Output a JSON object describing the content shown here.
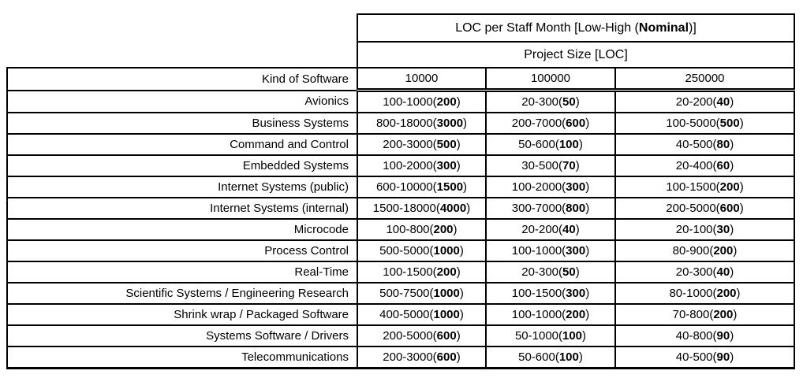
{
  "table": {
    "title_parts": [
      "LOC per Staff Month [Low-High (",
      "Nominal",
      ")]"
    ],
    "subtitle": "Project Size [LOC]",
    "row_header": "Kind of Software",
    "size_columns": [
      "10000",
      "100000",
      "250000"
    ],
    "rows": [
      {
        "label": "Avionics",
        "cells": [
          [
            "100-1000(",
            "200",
            ")"
          ],
          [
            "20-300(",
            "50",
            ")"
          ],
          [
            "20-200(",
            "40",
            ")"
          ]
        ]
      },
      {
        "label": "Business Systems",
        "cells": [
          [
            "800-18000(",
            "3000",
            ")"
          ],
          [
            "200-7000(",
            "600",
            ")"
          ],
          [
            "100-5000(",
            "500",
            ")"
          ]
        ]
      },
      {
        "label": "Command and Control",
        "cells": [
          [
            "200-3000(",
            "500",
            ")"
          ],
          [
            "50-600(",
            "100",
            ")"
          ],
          [
            "40-500(",
            "80",
            ")"
          ]
        ]
      },
      {
        "label": "Embedded Systems",
        "cells": [
          [
            "100-2000(",
            "300",
            ")"
          ],
          [
            "30-500(",
            "70",
            ")"
          ],
          [
            "20-400(",
            "60",
            ")"
          ]
        ]
      },
      {
        "label": "Internet Systems (public)",
        "cells": [
          [
            "600-10000(",
            "1500",
            ")"
          ],
          [
            "100-2000(",
            "300",
            ")"
          ],
          [
            "100-1500(",
            "200",
            ")"
          ]
        ]
      },
      {
        "label": "Internet Systems (internal)",
        "cells": [
          [
            "1500-18000(",
            "4000",
            ")"
          ],
          [
            "300-7000(",
            "800",
            ")"
          ],
          [
            "200-5000(",
            "600",
            ")"
          ]
        ]
      },
      {
        "label": "Microcode",
        "cells": [
          [
            "100-800(",
            "200",
            ")"
          ],
          [
            "20-200(",
            "40",
            ")"
          ],
          [
            "20-100(",
            "30",
            ")"
          ]
        ]
      },
      {
        "label": "Process Control",
        "cells": [
          [
            "500-5000(",
            "1000",
            ")"
          ],
          [
            "100-1000(",
            "300",
            ")"
          ],
          [
            "80-900(",
            "200",
            ")"
          ]
        ]
      },
      {
        "label": "Real-Time",
        "cells": [
          [
            "100-1500(",
            "200",
            ")"
          ],
          [
            "20-300(",
            "50",
            ")"
          ],
          [
            "20-300(",
            "40",
            ")"
          ]
        ]
      },
      {
        "label": "Scientific Systems / Engineering Research",
        "cells": [
          [
            "500-7500(",
            "1000",
            ")"
          ],
          [
            "100-1500(",
            "300",
            ")"
          ],
          [
            "80-1000(",
            "200",
            ")"
          ]
        ]
      },
      {
        "label": "Shrink wrap / Packaged Software",
        "cells": [
          [
            "400-5000(",
            "1000",
            ")"
          ],
          [
            "100-1000(",
            "200",
            ")"
          ],
          [
            "70-800(",
            "200",
            ")"
          ]
        ]
      },
      {
        "label": "Systems Software / Drivers",
        "cells": [
          [
            "200-5000(",
            "600",
            ")"
          ],
          [
            "50-1000(",
            "100",
            ")"
          ],
          [
            "40-800(",
            "90",
            ")"
          ]
        ]
      },
      {
        "label": "Telecommunications",
        "cells": [
          [
            "200-3000(",
            "600",
            ")"
          ],
          [
            "50-600(",
            "100",
            ")"
          ],
          [
            "40-500(",
            "90",
            ")"
          ]
        ]
      }
    ],
    "colors": {
      "text": "#000000",
      "border": "#000000",
      "background": "#ffffff"
    }
  }
}
